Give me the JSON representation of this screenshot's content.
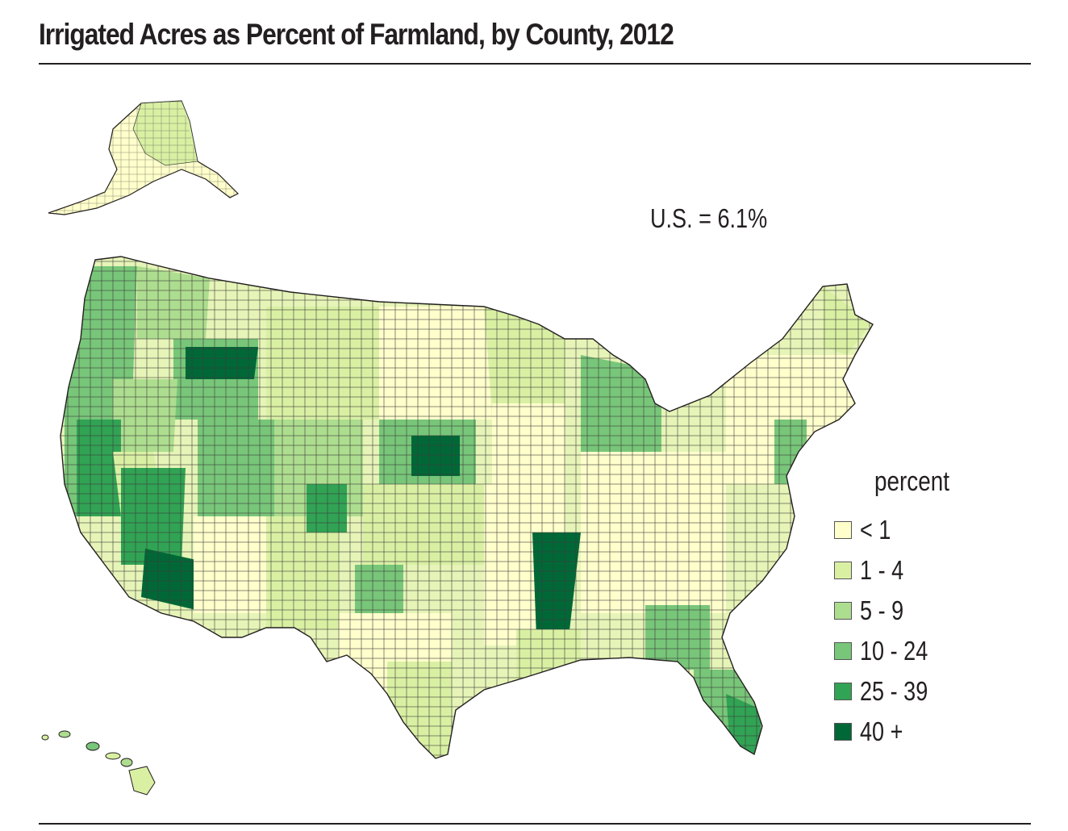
{
  "title": "Irrigated Acres as Percent of Farmland, by County, 2012",
  "us_note": "U.S. = 6.1%",
  "legend": {
    "title": "percent",
    "items": [
      {
        "label": "< 1",
        "color": "#ffffcc"
      },
      {
        "label": "1 - 4",
        "color": "#d9f0a3"
      },
      {
        "label": "5 - 9",
        "color": "#addd8e"
      },
      {
        "label": "10 - 24",
        "color": "#78c679"
      },
      {
        "label": "25 - 39",
        "color": "#31a354"
      },
      {
        "label": "40 +",
        "color": "#006837"
      }
    ]
  },
  "colors": {
    "county_border": "#3b3b3b",
    "text": "#231f20"
  }
}
